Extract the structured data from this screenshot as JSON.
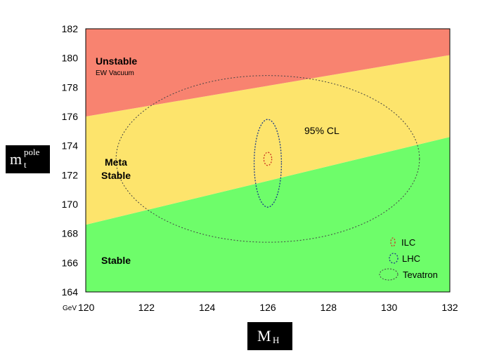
{
  "chart_data": {
    "type": "area",
    "xlim": [
      120,
      132
    ],
    "ylim": [
      164,
      182
    ],
    "x_ticks": [
      "120",
      "122",
      "124",
      "126",
      "128",
      "130",
      "132"
    ],
    "y_ticks": [
      "164",
      "166",
      "168",
      "170",
      "172",
      "174",
      "176",
      "178",
      "180",
      "182"
    ],
    "x_unit": "GeV",
    "xlabel": {
      "main": "M",
      "sub": "H"
    },
    "ylabel": {
      "main": "m",
      "sup": "pole",
      "sub": "t"
    },
    "boundaries": {
      "unstable_lower": {
        "x": [
          120,
          132
        ],
        "y": [
          176.0,
          180.2
        ]
      },
      "stable_upper": {
        "x": [
          120,
          132
        ],
        "y": [
          168.6,
          174.6
        ]
      }
    },
    "regions": [
      {
        "name": "unstable",
        "label": "Unstable",
        "sublabel": "EW Vacuum",
        "color": "#f88370"
      },
      {
        "name": "metastable",
        "label_line1": "Meta",
        "label_line2": "Stable",
        "color": "#fde46c"
      },
      {
        "name": "stable",
        "label": "Stable",
        "color": "#6efd6a"
      }
    ],
    "ellipses": [
      {
        "name": "ILC",
        "cx": 126.0,
        "cy": 173.1,
        "rx": 0.13,
        "ry": 0.45,
        "color": "#cc3322"
      },
      {
        "name": "LHC",
        "cx": 126.0,
        "cy": 172.8,
        "rx": 0.45,
        "ry": 3.0,
        "color": "#1a3a88"
      },
      {
        "name": "Tevatron",
        "cx": 126.0,
        "cy": 173.1,
        "rx": 5.0,
        "ry": 5.7,
        "color": "#444444"
      }
    ],
    "annotation": "95% CL",
    "grid": false,
    "legend_position": "bottom-right"
  }
}
